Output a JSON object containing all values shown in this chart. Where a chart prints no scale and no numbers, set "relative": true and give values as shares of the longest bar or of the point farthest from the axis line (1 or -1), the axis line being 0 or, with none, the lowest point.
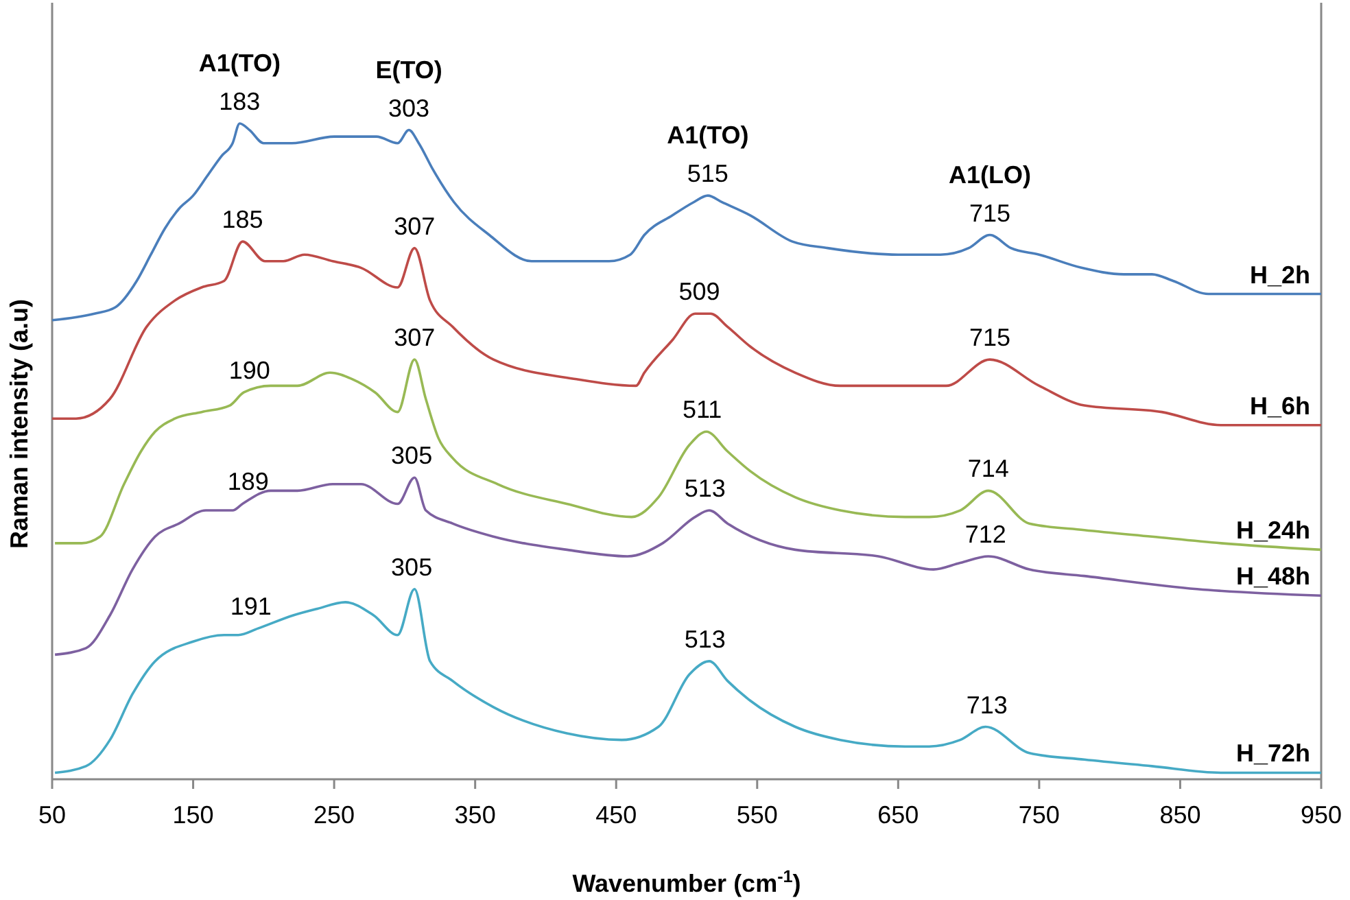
{
  "chart_data": {
    "type": "line",
    "relative": true,
    "xlabel": "Wavenumber (cm$^{-1}$)",
    "ylabel": "Raman intensity (a.u)",
    "xlim": [
      50,
      950
    ],
    "xticks": [
      50,
      150,
      250,
      350,
      450,
      550,
      650,
      750,
      850,
      950
    ],
    "grid": false,
    "legend": false,
    "marker": "none",
    "line_style": "solid",
    "tick_labels": "x",
    "series": [
      {
        "name": "H_2h",
        "color": "#4a7ebb",
        "x": [
          50,
          80,
          95,
          110,
          120,
          130,
          140,
          150,
          160,
          170,
          178,
          183,
          190,
          200,
          220,
          250,
          280,
          295,
          303,
          310,
          320,
          335,
          360,
          390,
          420,
          445,
          460,
          470,
          490,
          505,
          515,
          525,
          545,
          575,
          600,
          650,
          680,
          700,
          715,
          730,
          750,
          780,
          810,
          830,
          845,
          870,
          900,
          950
        ],
        "values": [
          0.7,
          0.71,
          0.72,
          0.76,
          0.8,
          0.84,
          0.87,
          0.89,
          0.92,
          0.95,
          0.97,
          1.0,
          0.99,
          0.97,
          0.97,
          0.98,
          0.98,
          0.97,
          0.99,
          0.97,
          0.93,
          0.88,
          0.83,
          0.79,
          0.79,
          0.79,
          0.8,
          0.83,
          0.86,
          0.88,
          0.89,
          0.88,
          0.86,
          0.82,
          0.81,
          0.8,
          0.8,
          0.81,
          0.83,
          0.81,
          0.8,
          0.78,
          0.77,
          0.77,
          0.76,
          0.74,
          0.74,
          0.74
        ]
      },
      {
        "name": "H_6h",
        "color": "#be4b48",
        "x": [
          50,
          67,
          91,
          117,
          137,
          156,
          172,
          185,
          201,
          214,
          229,
          249,
          269,
          295,
          307,
          318,
          334,
          363,
          422,
          464,
          470,
          490,
          506,
          517,
          529,
          545,
          577,
          609,
          655,
          684,
          715,
          750,
          782,
          837,
          879,
          950
        ],
        "values": [
          0.55,
          0.55,
          0.58,
          0.69,
          0.73,
          0.75,
          0.76,
          0.82,
          0.79,
          0.79,
          0.8,
          0.79,
          0.78,
          0.75,
          0.81,
          0.73,
          0.69,
          0.64,
          0.61,
          0.6,
          0.62,
          0.67,
          0.71,
          0.71,
          0.69,
          0.66,
          0.62,
          0.6,
          0.6,
          0.6,
          0.64,
          0.6,
          0.57,
          0.56,
          0.54,
          0.54
        ]
      },
      {
        "name": "H_24h",
        "color": "#98b954",
        "x": [
          52,
          71,
          84,
          101,
          113,
          123,
          137,
          156,
          176,
          186,
          205,
          224,
          247,
          263,
          279,
          295,
          307,
          315,
          324,
          334,
          366,
          415,
          461,
          480,
          502,
          514,
          529,
          545,
          577,
          609,
          655,
          672,
          694,
          714,
          743,
          782,
          830,
          879,
          950
        ],
        "values": [
          0.36,
          0.36,
          0.37,
          0.45,
          0.5,
          0.53,
          0.55,
          0.56,
          0.57,
          0.59,
          0.6,
          0.6,
          0.62,
          0.61,
          0.59,
          0.56,
          0.64,
          0.58,
          0.52,
          0.49,
          0.45,
          0.42,
          0.4,
          0.43,
          0.51,
          0.53,
          0.5,
          0.47,
          0.43,
          0.41,
          0.4,
          0.4,
          0.41,
          0.44,
          0.39,
          0.38,
          0.37,
          0.36,
          0.35
        ]
      },
      {
        "name": "H_48h",
        "color": "#7d60a0",
        "x": [
          52,
          74,
          91,
          107,
          123,
          140,
          159,
          178,
          185,
          205,
          224,
          249,
          269,
          295,
          307,
          315,
          334,
          363,
          415,
          458,
          483,
          506,
          516,
          529,
          577,
          636,
          675,
          694,
          714,
          743,
          782,
          862,
          950
        ],
        "values": [
          0.19,
          0.2,
          0.25,
          0.32,
          0.37,
          0.39,
          0.41,
          0.41,
          0.42,
          0.44,
          0.44,
          0.45,
          0.45,
          0.42,
          0.46,
          0.41,
          0.39,
          0.37,
          0.35,
          0.34,
          0.36,
          0.4,
          0.41,
          0.39,
          0.35,
          0.34,
          0.32,
          0.33,
          0.34,
          0.32,
          0.31,
          0.29,
          0.28
        ]
      },
      {
        "name": "H_72h",
        "color": "#46aac5",
        "x": [
          52,
          74,
          91,
          107,
          123,
          150,
          172,
          182,
          196,
          221,
          238,
          258,
          278,
          295,
          307,
          318,
          334,
          363,
          415,
          454,
          480,
          502,
          516,
          529,
          545,
          577,
          609,
          655,
          672,
          694,
          712,
          743,
          782,
          830,
          879,
          950
        ],
        "values": [
          0.01,
          0.02,
          0.06,
          0.13,
          0.18,
          0.21,
          0.22,
          0.22,
          0.23,
          0.25,
          0.26,
          0.27,
          0.25,
          0.22,
          0.29,
          0.18,
          0.15,
          0.11,
          0.07,
          0.06,
          0.08,
          0.16,
          0.18,
          0.15,
          0.12,
          0.08,
          0.06,
          0.05,
          0.05,
          0.06,
          0.08,
          0.04,
          0.03,
          0.02,
          0.01,
          0.01
        ]
      }
    ],
    "annotations": [
      "A1(TO)",
      "E(TO)",
      "A1(TO)",
      "A1(LO)",
      {
        "text": "183",
        "x": 183,
        "y": 1.0
      },
      {
        "text": "303",
        "x": 303,
        "y": 0.99
      },
      {
        "text": "515",
        "x": 515,
        "y": 0.89
      },
      {
        "text": "715",
        "x": 715,
        "y": 0.83
      },
      {
        "text": "185",
        "x": 185,
        "y": 0.82
      },
      {
        "text": "307",
        "x": 307,
        "y": 0.81
      },
      {
        "text": "509",
        "x": 509,
        "y": 0.71
      },
      {
        "text": "715",
        "x": 715,
        "y": 0.64
      },
      {
        "text": "190",
        "x": 190,
        "y": 0.59
      },
      {
        "text": "307",
        "x": 307,
        "y": 0.64
      },
      {
        "text": "511",
        "x": 511,
        "y": 0.53
      },
      {
        "text": "714",
        "x": 714,
        "y": 0.44
      },
      {
        "text": "189",
        "x": 189,
        "y": 0.42
      },
      {
        "text": "305",
        "x": 305,
        "y": 0.46
      },
      {
        "text": "513",
        "x": 513,
        "y": 0.41
      },
      {
        "text": "712",
        "x": 712,
        "y": 0.34
      },
      {
        "text": "191",
        "x": 191,
        "y": 0.23
      },
      {
        "text": "305",
        "x": 305,
        "y": 0.29
      },
      {
        "text": "513",
        "x": 513,
        "y": 0.18
      },
      {
        "text": "713",
        "x": 713,
        "y": 0.08
      }
    ]
  }
}
